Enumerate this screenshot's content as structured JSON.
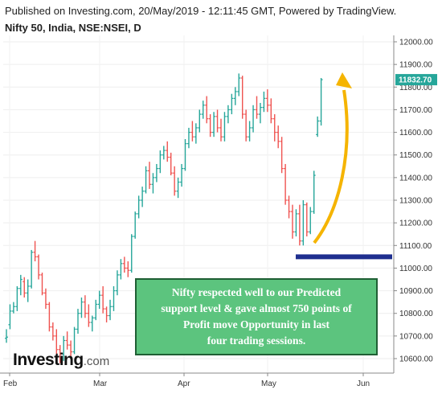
{
  "header": {
    "published": "Published on Investing.com, 20/May/2019 - 12:11:45 GMT, Powered by TradingView.",
    "instrument": "Nifty 50, India, NSE:NSEI, D"
  },
  "logo": {
    "main": "Investing",
    "suffix": ".com"
  },
  "annotation": {
    "lines": [
      "Nifty respected well to our Predicted",
      "support level & gave almost 750 points of",
      "Profit move Opportunity in last",
      "four trading sessions."
    ]
  },
  "colors": {
    "up": "#26a69a",
    "down": "#ef5350",
    "support_line": "#1f2f8f",
    "arrow": "#f5b400",
    "price_tag": "#26a69a",
    "annotation_bg": "#5cc47e"
  },
  "chart_data": {
    "type": "ohlc",
    "ylim": [
      10550,
      12050
    ],
    "y_ticks": [
      "12000.00",
      "11900.00",
      "11800.00",
      "11700.00",
      "11600.00",
      "11500.00",
      "11400.00",
      "11300.00",
      "11200.00",
      "11100.00",
      "11000.00",
      "10900.00",
      "10800.00",
      "10700.00",
      "10600.00"
    ],
    "x_ticks": [
      "Feb",
      "Mar",
      "Apr",
      "May",
      "Jun"
    ],
    "last_price_label": "11832.70",
    "last_price": 11832.7,
    "support_level": 11050,
    "bars": [
      [
        0,
        10690,
        10730,
        10670,
        10695
      ],
      [
        1,
        10750,
        10840,
        10730,
        10810
      ],
      [
        2,
        10810,
        10850,
        10800,
        10830
      ],
      [
        3,
        10830,
        10920,
        10810,
        10910
      ],
      [
        4,
        10910,
        10970,
        10880,
        10950
      ],
      [
        5,
        10940,
        10960,
        10870,
        10890
      ],
      [
        6,
        10890,
        10950,
        10850,
        10920
      ],
      [
        7,
        10920,
        11080,
        10910,
        11070
      ],
      [
        8,
        11070,
        11120,
        11030,
        11050
      ],
      [
        9,
        11050,
        11060,
        10950,
        10970
      ],
      [
        10,
        10970,
        10980,
        10880,
        10890
      ],
      [
        11,
        10890,
        10910,
        10820,
        10840
      ],
      [
        12,
        10840,
        10850,
        10720,
        10740
      ],
      [
        13,
        10740,
        10760,
        10680,
        10700
      ],
      [
        14,
        10700,
        10730,
        10600,
        10640
      ],
      [
        15,
        10640,
        10660,
        10580,
        10620
      ],
      [
        16,
        10620,
        10700,
        10590,
        10680
      ],
      [
        17,
        10680,
        10720,
        10640,
        10660
      ],
      [
        18,
        10660,
        10680,
        10600,
        10630
      ],
      [
        19,
        10630,
        10740,
        10620,
        10730
      ],
      [
        20,
        10730,
        10820,
        10710,
        10800
      ],
      [
        21,
        10800,
        10870,
        10780,
        10850
      ],
      [
        22,
        10850,
        10880,
        10780,
        10800
      ],
      [
        23,
        10800,
        10840,
        10740,
        10760
      ],
      [
        24,
        10760,
        10790,
        10720,
        10780
      ],
      [
        25,
        10780,
        10860,
        10770,
        10840
      ],
      [
        26,
        10840,
        10900,
        10820,
        10880
      ],
      [
        27,
        10880,
        10920,
        10800,
        10820
      ],
      [
        28,
        10820,
        10830,
        10760,
        10790
      ],
      [
        29,
        10790,
        10860,
        10770,
        10830
      ],
      [
        30,
        10830,
        10920,
        10810,
        10900
      ],
      [
        31,
        10900,
        10990,
        10880,
        10970
      ],
      [
        32,
        10970,
        11040,
        10950,
        11020
      ],
      [
        33,
        11020,
        11050,
        10980,
        11000
      ],
      [
        34,
        11000,
        11030,
        10960,
        10990
      ],
      [
        35,
        10990,
        11150,
        10980,
        11140
      ],
      [
        36,
        11140,
        11250,
        11130,
        11240
      ],
      [
        37,
        11240,
        11320,
        11220,
        11300
      ],
      [
        38,
        11300,
        11360,
        11270,
        11340
      ],
      [
        39,
        11340,
        11450,
        11330,
        11430
      ],
      [
        40,
        11430,
        11470,
        11350,
        11370
      ],
      [
        41,
        11370,
        11420,
        11330,
        11400
      ],
      [
        42,
        11400,
        11460,
        11380,
        11440
      ],
      [
        43,
        11440,
        11520,
        11420,
        11500
      ],
      [
        44,
        11500,
        11540,
        11480,
        11520
      ],
      [
        45,
        11520,
        11560,
        11470,
        11490
      ],
      [
        46,
        11490,
        11510,
        11410,
        11420
      ],
      [
        47,
        11420,
        11450,
        11320,
        11340
      ],
      [
        48,
        11340,
        11400,
        11310,
        11380
      ],
      [
        49,
        11380,
        11460,
        11360,
        11440
      ],
      [
        50,
        11440,
        11570,
        11430,
        11550
      ],
      [
        51,
        11550,
        11620,
        11530,
        11600
      ],
      [
        52,
        11600,
        11650,
        11560,
        11580
      ],
      [
        53,
        11580,
        11640,
        11550,
        11620
      ],
      [
        54,
        11620,
        11700,
        11600,
        11680
      ],
      [
        55,
        11680,
        11740,
        11660,
        11720
      ],
      [
        56,
        11720,
        11760,
        11640,
        11660
      ],
      [
        57,
        11660,
        11680,
        11580,
        11600
      ],
      [
        58,
        11600,
        11690,
        11580,
        11670
      ],
      [
        59,
        11670,
        11700,
        11600,
        11620
      ],
      [
        60,
        11620,
        11660,
        11560,
        11580
      ],
      [
        61,
        11580,
        11690,
        11560,
        11670
      ],
      [
        62,
        11670,
        11720,
        11640,
        11700
      ],
      [
        63,
        11700,
        11770,
        11680,
        11750
      ],
      [
        64,
        11750,
        11800,
        11720,
        11780
      ],
      [
        65,
        11780,
        11860,
        11760,
        11840
      ],
      [
        66,
        11840,
        11850,
        11660,
        11680
      ],
      [
        67,
        11680,
        11700,
        11560,
        11580
      ],
      [
        68,
        11580,
        11650,
        11560,
        11620
      ],
      [
        69,
        11620,
        11720,
        11600,
        11700
      ],
      [
        70,
        11700,
        11760,
        11660,
        11680
      ],
      [
        71,
        11680,
        11730,
        11640,
        11710
      ],
      [
        72,
        11710,
        11780,
        11690,
        11750
      ],
      [
        73,
        11750,
        11790,
        11690,
        11720
      ],
      [
        74,
        11720,
        11750,
        11640,
        11660
      ],
      [
        75,
        11660,
        11680,
        11560,
        11600
      ],
      [
        76,
        11600,
        11630,
        11530,
        11560
      ],
      [
        77,
        11560,
        11580,
        11420,
        11440
      ],
      [
        78,
        11440,
        11460,
        11280,
        11300
      ],
      [
        79,
        11300,
        11320,
        11220,
        11250
      ],
      [
        80,
        11250,
        11280,
        11130,
        11160
      ],
      [
        81,
        11160,
        11260,
        11140,
        11240
      ],
      [
        82,
        11240,
        11280,
        11100,
        11120
      ],
      [
        83,
        11120,
        11300,
        11100,
        11280
      ],
      [
        84,
        11280,
        11290,
        11140,
        11160
      ],
      [
        85,
        11160,
        11270,
        11150,
        11250
      ],
      [
        86,
        11250,
        11430,
        11240,
        11410
      ],
      [
        87,
        11590,
        11670,
        11580,
        11650
      ],
      [
        88,
        11650,
        11840,
        11630,
        11832.7
      ]
    ]
  }
}
